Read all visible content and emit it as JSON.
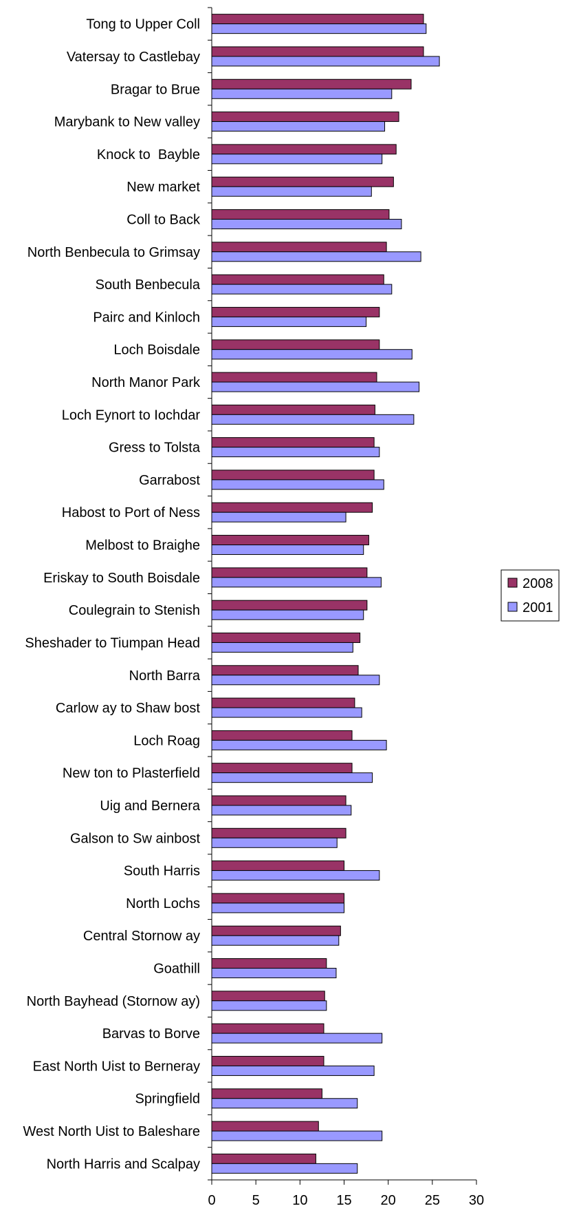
{
  "chart_data": {
    "type": "bar",
    "orientation": "horizontal",
    "title": "",
    "xlabel": "",
    "ylabel": "",
    "xlim": [
      0,
      30
    ],
    "xticks": [
      0,
      5,
      10,
      15,
      20,
      25,
      30
    ],
    "grid": false,
    "legend_position": "right",
    "categories": [
      "Tong to Upper Coll",
      "Vatersay to Castlebay",
      "Bragar to Brue",
      "Marybank to New valley",
      "Knock to  Bayble",
      "New market",
      "Coll to Back",
      "North Benbecula to Grimsay",
      "South Benbecula",
      "Pairc and Kinloch",
      "Loch Boisdale",
      "North Manor Park",
      "Loch Eynort to Iochdar",
      "Gress to Tolsta",
      "Garrabost",
      "Habost to Port of Ness",
      "Melbost to Braighe",
      "Eriskay to South Boisdale",
      "Coulegrain to Stenish",
      "Sheshader to Tiumpan Head",
      "North Barra",
      "Carlow ay to Shaw bost",
      "Loch Roag",
      "New ton to Plasterfield",
      "Uig and Bernera",
      "Galson to Sw ainbost",
      "South Harris",
      "North Lochs",
      "Central Stornow ay",
      "Goathill",
      "North Bayhead (Stornow ay)",
      "Barvas to Borve",
      "East North Uist to Berneray",
      "Springfield",
      "West North Uist to Baleshare",
      "North Harris and Scalpay"
    ],
    "series": [
      {
        "name": "2008",
        "color": "#993366",
        "values": [
          24.0,
          24.0,
          22.6,
          21.2,
          20.9,
          20.6,
          20.1,
          19.8,
          19.5,
          19.0,
          19.0,
          18.7,
          18.5,
          18.4,
          18.4,
          18.2,
          17.8,
          17.6,
          17.6,
          16.8,
          16.6,
          16.2,
          15.9,
          15.9,
          15.2,
          15.2,
          15.0,
          15.0,
          14.6,
          13.0,
          12.8,
          12.7,
          12.7,
          12.5,
          12.1,
          11.8
        ]
      },
      {
        "name": "2001",
        "color": "#9999ff",
        "values": [
          24.3,
          25.8,
          20.4,
          19.6,
          19.3,
          18.1,
          21.5,
          23.7,
          20.4,
          17.5,
          22.7,
          23.5,
          22.9,
          19.0,
          19.5,
          15.2,
          17.2,
          19.2,
          17.2,
          16.0,
          19.0,
          17.0,
          19.8,
          18.2,
          15.8,
          14.2,
          19.0,
          15.0,
          14.4,
          14.1,
          13.0,
          19.3,
          18.4,
          16.5,
          19.3,
          16.5
        ]
      }
    ]
  }
}
